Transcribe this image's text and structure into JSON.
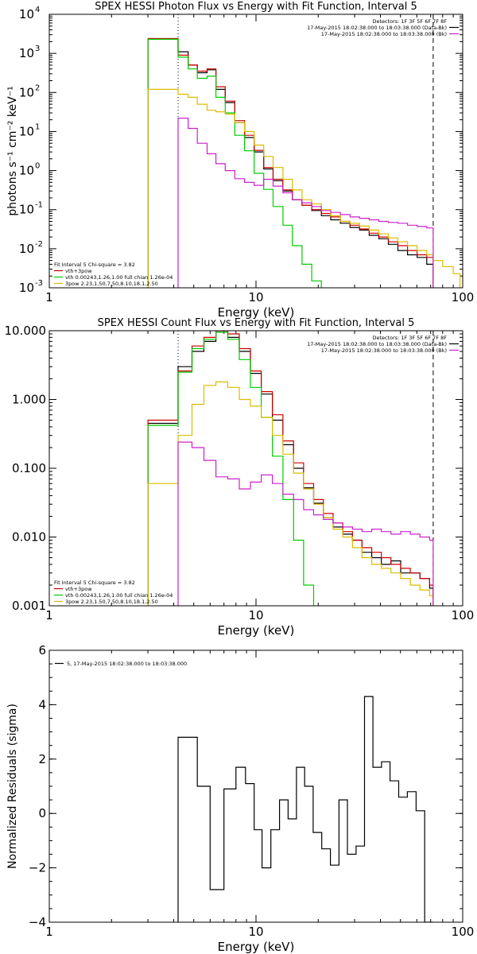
{
  "chart_data": [
    {
      "type": "line",
      "title": "SPEX HESSI Photon Flux vs Energy with Fit Function, Interval 5",
      "xlabel": "Energy (keV)",
      "ylabel": "photons s⁻¹ cm⁻² keV⁻¹",
      "xscale": "log",
      "yscale": "log",
      "xlim": [
        1,
        100
      ],
      "ylim": [
        0.001,
        10000
      ],
      "xticks": [
        {
          "v": 1,
          "label": "1"
        },
        {
          "v": 10,
          "label": "10"
        },
        {
          "v": 100,
          "label": "100"
        }
      ],
      "yticks": [
        {
          "v": 0.001,
          "base": "10",
          "exp": "-3"
        },
        {
          "v": 0.01,
          "base": "10",
          "exp": "-2"
        },
        {
          "v": 0.1,
          "base": "10",
          "exp": "-1"
        },
        {
          "v": 1,
          "base": "10",
          "exp": "0"
        },
        {
          "v": 10,
          "base": "10",
          "exp": "1"
        },
        {
          "v": 100,
          "base": "10",
          "exp": "2"
        },
        {
          "v": 1000,
          "base": "10",
          "exp": "3"
        },
        {
          "v": 10000,
          "base": "10",
          "exp": "4"
        }
      ],
      "legend_top_right": [
        {
          "text": "Detectors: 1F 3F 5F 6F 7F 8F",
          "color": ""
        },
        {
          "text": "17-May-2015 18:02:38.000 to 18:03:38.000 (Data-Bk)",
          "color": "#000000"
        },
        {
          "text": "17-May-2015 18:02:38.000 to 18:03:38.000 (Bk)",
          "color": "#cc22cc"
        }
      ],
      "legend_bottom_left": [
        {
          "text": "Fit Interval 5   Chi-square = 3.82",
          "color": ""
        },
        {
          "text": "vth+3pow",
          "color": "#cc0000"
        },
        {
          "text": "vth 0.00243,1.26,1.00  full chian 1.26e-04",
          "color": "#00cc00"
        },
        {
          "text": "3pow 2.23,1.50,7.50,8.10,18.1,2.50",
          "color": "#ddbb00"
        }
      ],
      "vlines": [
        {
          "x": 4.2,
          "style": "dotted"
        },
        {
          "x": 72,
          "style": "dashed"
        }
      ],
      "series": [
        {
          "name": "Data-Bk",
          "color": "#000000",
          "edges": [
            3.0,
            4.2,
            4.7,
            5.2,
            5.8,
            6.4,
            7.1,
            7.9,
            8.8,
            9.8,
            10.9,
            12.1,
            13.5,
            15.0,
            16.7,
            18.6,
            20.7,
            23.0,
            25.6,
            28.5,
            31.7,
            35.3,
            39.3,
            43.7,
            48.6,
            54.1,
            60.2,
            67.0,
            72.0
          ],
          "values": [
            2300,
            1100,
            500,
            320,
            380,
            120,
            55,
            17,
            7,
            3,
            1.1,
            0.55,
            0.3,
            0.18,
            0.13,
            0.095,
            0.07,
            0.055,
            0.045,
            0.035,
            0.03,
            0.022,
            0.018,
            0.013,
            0.009,
            0.007,
            0.006,
            0.004
          ]
        },
        {
          "name": "vth+3pow",
          "color": "#cc0000",
          "edges": [
            3.0,
            4.2,
            4.7,
            5.2,
            5.8,
            6.4,
            7.1,
            7.9,
            8.8,
            9.8,
            10.9,
            12.1,
            13.5,
            15.0,
            16.7,
            18.6,
            20.7,
            23.0,
            25.6,
            28.5,
            31.7,
            35.3,
            39.3,
            43.7,
            48.6,
            54.1,
            60.2,
            67.0,
            72.0
          ],
          "values": [
            2400,
            900,
            500,
            350,
            400,
            140,
            60,
            19,
            8,
            3.3,
            1.2,
            0.6,
            0.32,
            0.18,
            0.13,
            0.1,
            0.08,
            0.065,
            0.05,
            0.04,
            0.032,
            0.025,
            0.02,
            0.015,
            0.012,
            0.009,
            0.007,
            0.006
          ]
        },
        {
          "name": "vth",
          "color": "#00cc00",
          "edges": [
            3.0,
            4.2,
            4.7,
            5.2,
            5.8,
            6.4,
            7.1,
            7.9,
            8.8,
            9.8,
            10.9,
            12.1,
            13.5,
            15.0,
            16.7,
            18.6,
            20.7
          ],
          "values": [
            2300,
            800,
            400,
            230,
            260,
            75,
            30,
            8,
            3.2,
            0.85,
            0.33,
            0.12,
            0.04,
            0.012,
            0.004,
            0.0015
          ]
        },
        {
          "name": "3pow",
          "color": "#ddbb00",
          "edges": [
            3.0,
            4.2,
            4.7,
            5.2,
            5.8,
            6.4,
            7.1,
            7.9,
            8.8,
            9.8,
            10.9,
            12.1,
            13.5,
            15.0,
            16.7,
            18.6,
            20.7,
            23.0,
            25.6,
            28.5,
            31.7,
            35.3,
            39.3,
            43.7,
            48.6,
            54.1,
            60.2,
            67.0,
            72.0,
            80.0,
            90.0,
            97.0
          ],
          "values": [
            120,
            90,
            75,
            50,
            35,
            32,
            28,
            17,
            10,
            4.5,
            2.3,
            1.2,
            0.6,
            0.32,
            0.18,
            0.14,
            0.1,
            0.07,
            0.05,
            0.045,
            0.038,
            0.03,
            0.024,
            0.019,
            0.015,
            0.012,
            0.009,
            0.007,
            0.005,
            0.0035,
            0.0023
          ]
        },
        {
          "name": "Bk",
          "color": "#cc22cc",
          "edges": [
            4.2,
            4.7,
            5.2,
            5.8,
            6.4,
            7.1,
            7.9,
            8.8,
            9.8,
            10.9,
            12.1,
            13.5,
            15.0,
            16.7,
            18.6,
            20.7,
            23.0,
            25.6,
            28.5,
            31.7,
            35.3,
            39.3,
            43.7,
            48.6,
            54.1,
            60.2,
            67.0,
            72.0
          ],
          "values": [
            22,
            12,
            5,
            2.7,
            1.5,
            1,
            0.62,
            0.5,
            0.42,
            0.6,
            0.4,
            0.27,
            0.18,
            0.15,
            0.12,
            0.095,
            0.085,
            0.075,
            0.065,
            0.06,
            0.055,
            0.05,
            0.047,
            0.045,
            0.04,
            0.037,
            0.034
          ]
        }
      ]
    },
    {
      "type": "line",
      "title": "SPEX HESSI Count Flux vs Energy with Fit Function, Interval 5",
      "xlabel": "Energy (keV)",
      "ylabel": "",
      "xscale": "log",
      "yscale": "log",
      "xlim": [
        1,
        100
      ],
      "ylim": [
        0.001,
        10
      ],
      "xticks": [
        {
          "v": 1,
          "label": "1"
        },
        {
          "v": 10,
          "label": "10"
        },
        {
          "v": 100,
          "label": "100"
        }
      ],
      "yticks": [
        {
          "v": 0.001,
          "label": "0.001"
        },
        {
          "v": 0.01,
          "label": "0.010"
        },
        {
          "v": 0.1,
          "label": "0.100"
        },
        {
          "v": 1,
          "label": "1.000"
        },
        {
          "v": 10,
          "label": "10.000"
        }
      ],
      "legend_top_right": [
        {
          "text": "Detectors: 1F 3F 5F 6F 7F 8F",
          "color": ""
        },
        {
          "text": "17-May-2015 18:02:38.000 to 18:03:38.000 (Data-Bk)",
          "color": "#000000"
        },
        {
          "text": "17-May-2015 18:02:38.000 to 18:03:38.000 (Bk)",
          "color": "#cc22cc"
        }
      ],
      "legend_bottom_left": [
        {
          "text": "Fit Interval 5   Chi-square = 3.82",
          "color": ""
        },
        {
          "text": "vth+3pow",
          "color": "#cc0000"
        },
        {
          "text": "vth 0.00243,1.26,1.00  full chian 1.26e-04",
          "color": "#00cc00"
        },
        {
          "text": "3pow 2.23,1.50,7.50,8.10,18.1,2.50",
          "color": "#ddbb00"
        }
      ],
      "vlines": [
        {
          "x": 4.2,
          "style": "dotted"
        },
        {
          "x": 72,
          "style": "dashed"
        }
      ],
      "series": [
        {
          "name": "Data-Bk",
          "color": "#000000",
          "edges": [
            3.0,
            4.2,
            4.9,
            5.6,
            6.4,
            7.3,
            8.3,
            9.4,
            10.6,
            12.0,
            13.5,
            15.2,
            17.0,
            19.0,
            21.2,
            23.6,
            26.3,
            29.3,
            32.6,
            36.3,
            40.4,
            45.0,
            50.1,
            55.8,
            62.1,
            69.2,
            72.0
          ],
          "values": [
            0.45,
            3.0,
            5.0,
            7.0,
            9.5,
            8.0,
            5.0,
            2.4,
            1.2,
            0.5,
            0.22,
            0.1,
            0.052,
            0.031,
            0.019,
            0.014,
            0.011,
            0.009,
            0.006,
            0.005,
            0.004,
            0.0045,
            0.003,
            0.003,
            0.0025,
            0.0018
          ]
        },
        {
          "name": "vth+3pow",
          "color": "#cc0000",
          "edges": [
            3.0,
            4.2,
            4.9,
            5.6,
            6.4,
            7.3,
            8.3,
            9.4,
            10.6,
            12.0,
            13.5,
            15.2,
            17.0,
            19.0,
            21.2,
            23.6,
            26.3,
            29.3,
            32.6,
            36.3,
            40.4,
            45.0,
            50.1,
            55.8,
            62.1,
            69.2,
            72.0
          ],
          "values": [
            0.5,
            2.6,
            6.0,
            8.0,
            10.0,
            9.0,
            5.5,
            2.6,
            1.3,
            0.6,
            0.25,
            0.12,
            0.06,
            0.035,
            0.022,
            0.016,
            0.012,
            0.009,
            0.007,
            0.006,
            0.005,
            0.004,
            0.0035,
            0.003,
            0.0025,
            0.002
          ]
        },
        {
          "name": "vth",
          "color": "#00cc00",
          "edges": [
            3.0,
            4.2,
            4.9,
            5.6,
            6.4,
            7.3,
            8.3,
            9.4,
            10.6,
            12.0,
            13.5,
            15.2,
            17.0,
            19.0
          ],
          "values": [
            0.42,
            2.5,
            5.5,
            7.5,
            9.5,
            7.5,
            3.8,
            1.5,
            0.55,
            0.15,
            0.035,
            0.009,
            0.002
          ]
        },
        {
          "name": "3pow",
          "color": "#ddbb00",
          "edges": [
            3.0,
            4.2,
            4.9,
            5.6,
            6.4,
            7.3,
            8.3,
            9.4,
            10.6,
            12.0,
            13.5,
            15.2,
            17.0,
            19.0,
            21.2,
            23.6,
            26.3,
            29.3,
            32.6,
            36.3,
            40.4,
            45.0,
            50.1,
            55.8,
            62.1,
            69.2,
            72.0
          ],
          "values": [
            0.06,
            0.3,
            0.85,
            1.6,
            1.8,
            1.5,
            1.0,
            0.8,
            0.55,
            0.3,
            0.16,
            0.085,
            0.05,
            0.03,
            0.019,
            0.013,
            0.01,
            0.007,
            0.005,
            0.004,
            0.0035,
            0.003,
            0.0025,
            0.002,
            0.0017,
            0.0014
          ]
        },
        {
          "name": "Bk",
          "color": "#cc22cc",
          "edges": [
            4.2,
            4.9,
            5.6,
            6.4,
            7.3,
            8.3,
            9.4,
            10.6,
            12.0,
            13.5,
            15.2,
            17.0,
            19.0,
            21.2,
            23.6,
            26.3,
            29.3,
            32.6,
            36.3,
            40.4,
            45.0,
            50.1,
            55.8,
            62.1,
            69.2,
            72.0
          ],
          "values": [
            0.24,
            0.2,
            0.13,
            0.075,
            0.07,
            0.05,
            0.063,
            0.08,
            0.06,
            0.042,
            0.035,
            0.025,
            0.021,
            0.018,
            0.016,
            0.014,
            0.013,
            0.012,
            0.013,
            0.012,
            0.011,
            0.012,
            0.011,
            0.01,
            0.009
          ]
        }
      ]
    },
    {
      "type": "line",
      "title": "",
      "xlabel": "Energy (keV)",
      "ylabel": "Normalized Residuals (sigma)",
      "xscale": "log",
      "yscale": "linear",
      "xlim": [
        1,
        100
      ],
      "ylim": [
        -4,
        6
      ],
      "xticks": [
        {
          "v": 1,
          "label": "1"
        },
        {
          "v": 10,
          "label": "10"
        },
        {
          "v": 100,
          "label": "100"
        }
      ],
      "yticks": [
        {
          "v": -4,
          "label": "−4"
        },
        {
          "v": -2,
          "label": "−2"
        },
        {
          "v": 0,
          "label": "0"
        },
        {
          "v": 2,
          "label": "2"
        },
        {
          "v": 4,
          "label": "4"
        },
        {
          "v": 6,
          "label": "6"
        }
      ],
      "legend_top_left": [
        {
          "text": "5, 17-May-2015 18:02:38.000 to 18:03:38.000",
          "color": "#000000"
        }
      ],
      "series": [
        {
          "name": "5, 17-May-2015 18:02:38.000 to 18:03:38.000",
          "color": "#000000",
          "edges": [
            4.2,
            5.2,
            6.0,
            7.0,
            8.0,
            8.9,
            9.8,
            10.7,
            11.8,
            13.0,
            14.3,
            15.7,
            17.2,
            18.9,
            20.8,
            22.9,
            25.2,
            27.7,
            30.5,
            33.5,
            36.8,
            40.5,
            44.5,
            49.0,
            54.0,
            59.5,
            65.5,
            72.0
          ],
          "values": [
            2.8,
            1.0,
            -2.8,
            0.9,
            1.7,
            1.1,
            -0.6,
            -2.0,
            -0.6,
            0.5,
            -0.2,
            1.7,
            1.0,
            -0.7,
            -1.3,
            -1.9,
            0.5,
            -1.5,
            -1.2,
            4.3,
            1.7,
            1.9,
            1.2,
            0.6,
            0.8,
            0.1,
            -4.0
          ]
        }
      ]
    }
  ]
}
